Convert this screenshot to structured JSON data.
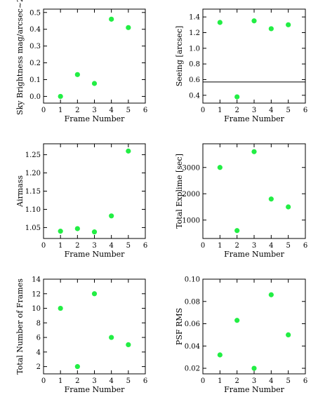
{
  "chart_data": [
    {
      "type": "scatter",
      "xlabel": "Frame Number",
      "ylabel": "Sky Brightness mag/arcsec~2",
      "xlim": [
        0,
        6
      ],
      "ylim": [
        -0.04,
        0.52
      ],
      "x": [
        1,
        2,
        3,
        4,
        5
      ],
      "y": [
        0.0,
        0.13,
        0.077,
        0.46,
        0.41
      ],
      "xticks": [
        0,
        1,
        2,
        3,
        4,
        5,
        6
      ],
      "yticks": [
        0.0,
        0.1,
        0.2,
        0.3,
        0.4,
        0.5
      ],
      "ytick_labels": [
        "0.0",
        "0.1",
        "0.2",
        "0.3",
        "0.4",
        "0.5"
      ],
      "point_color": "#22ee44"
    },
    {
      "type": "scatter",
      "xlabel": "Frame Number",
      "ylabel": "Seeing [arcsec]",
      "xlim": [
        0,
        6
      ],
      "ylim": [
        0.3,
        1.5
      ],
      "x": [
        1,
        2,
        3,
        4,
        5
      ],
      "y": [
        1.33,
        0.38,
        1.35,
        1.25,
        1.3
      ],
      "hline": 0.57,
      "xticks": [
        0,
        1,
        2,
        3,
        4,
        5,
        6
      ],
      "yticks": [
        0.4,
        0.6,
        0.8,
        1.0,
        1.2,
        1.4
      ],
      "ytick_labels": [
        "0.4",
        "0.6",
        "0.8",
        "1.0",
        "1.2",
        "1.4"
      ],
      "point_color": "#22ee44"
    },
    {
      "type": "scatter",
      "xlabel": "Frame Number",
      "ylabel": "Airmass",
      "xlim": [
        0,
        6
      ],
      "ylim": [
        1.02,
        1.28
      ],
      "x": [
        1,
        2,
        3,
        4,
        5
      ],
      "y": [
        1.04,
        1.047,
        1.038,
        1.082,
        1.26
      ],
      "xticks": [
        0,
        1,
        2,
        3,
        4,
        5,
        6
      ],
      "yticks": [
        1.05,
        1.1,
        1.15,
        1.2,
        1.25
      ],
      "ytick_labels": [
        "1.05",
        "1.10",
        "1.15",
        "1.20",
        "1.25"
      ],
      "point_color": "#22ee44"
    },
    {
      "type": "scatter",
      "xlabel": "Frame Number",
      "ylabel": "Total Explime [sec]",
      "xlim": [
        0,
        6
      ],
      "ylim": [
        300,
        3900
      ],
      "x": [
        1,
        2,
        3,
        4,
        5
      ],
      "y": [
        3000,
        600,
        3600,
        1800,
        1500
      ],
      "xticks": [
        0,
        1,
        2,
        3,
        4,
        5,
        6
      ],
      "yticks": [
        1000,
        2000,
        3000
      ],
      "ytick_labels": [
        "1000",
        "2000",
        "3000"
      ],
      "point_color": "#22ee44"
    },
    {
      "type": "scatter",
      "xlabel": "Frame Number",
      "ylabel": "Total Number of Frames",
      "xlim": [
        0,
        6
      ],
      "ylim": [
        1,
        14
      ],
      "x": [
        1,
        2,
        3,
        4,
        5
      ],
      "y": [
        10,
        2,
        12,
        6,
        5
      ],
      "xticks": [
        0,
        1,
        2,
        3,
        4,
        5,
        6
      ],
      "yticks": [
        2,
        4,
        6,
        8,
        10,
        12,
        14
      ],
      "ytick_labels": [
        "2",
        "4",
        "6",
        "8",
        "10",
        "12",
        "14"
      ],
      "point_color": "#22ee44"
    },
    {
      "type": "scatter",
      "xlabel": "Frame Number",
      "ylabel": "PSF RMS",
      "xlim": [
        0,
        6
      ],
      "ylim": [
        0.015,
        0.1
      ],
      "x": [
        1,
        2,
        3,
        4,
        5
      ],
      "y": [
        0.032,
        0.063,
        0.02,
        0.086,
        0.05
      ],
      "xticks": [
        0,
        1,
        2,
        3,
        4,
        5,
        6
      ],
      "yticks": [
        0.02,
        0.04,
        0.06,
        0.08,
        0.1
      ],
      "ytick_labels": [
        "0.02",
        "0.04",
        "0.06",
        "0.08",
        "0.10"
      ],
      "point_color": "#22ee44"
    }
  ]
}
